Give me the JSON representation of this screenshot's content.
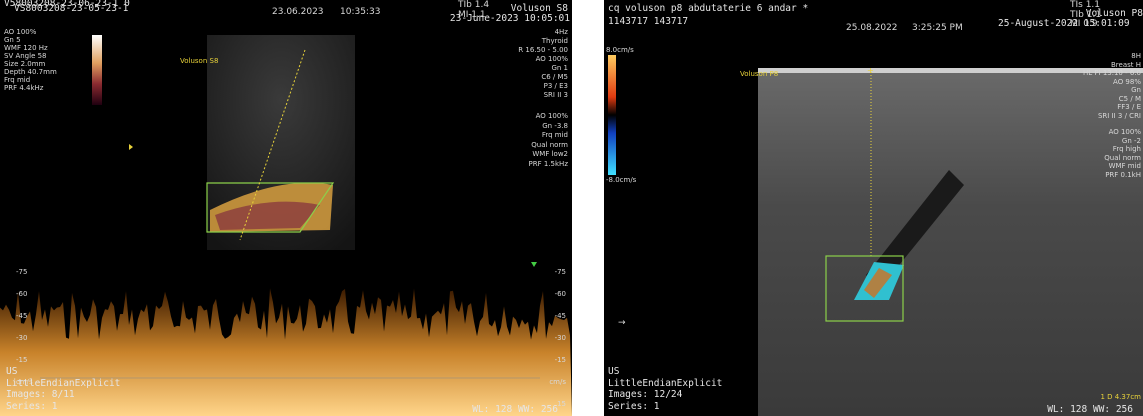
{
  "left": {
    "header": {
      "id_overlay": "V58003208-23-06-23-1 0",
      "id_main": "VS8003208-23-05-23-1",
      "date": "23.06.2023",
      "time": "10:35:33",
      "tib": "TIb 1.4",
      "mi": "MI 1.1",
      "brand": "Voluson S8",
      "datetime": "23-June-2023 10:05:01"
    },
    "probe": "Voluson S8",
    "params_left": [
      "AO 100%",
      "Gn 5",
      "WMF 120 Hz",
      "SV Angle 58",
      "Size 2.0mm",
      "Depth 40.7mm",
      "Frq mid",
      "PRF 4.4kHz"
    ],
    "params_right": [
      "4Hz",
      "Thyroid",
      "R 16.50 - 5.00",
      "AO 100%",
      "Gn 1",
      "C6 / M5",
      "P3 / E3",
      "SRI II 3"
    ],
    "params_right2": [
      "AO 100%",
      "Gn -3.8",
      "Frq mid",
      "Qual norm",
      "WMF low2",
      "PRF 1.5kHz"
    ],
    "doppler_ticks_left": [
      "-75",
      "-60",
      "-45",
      "-30",
      "-15",
      "cm/s"
    ],
    "doppler_ticks_right": [
      "-75",
      "-60",
      "-45",
      "-30",
      "-15",
      "cm/s",
      "15"
    ],
    "footer": [
      "US",
      "LittleEndianExplicit",
      "Images: 8/11",
      "Series: 1"
    ],
    "window": "WL: 128 WW: 256"
  },
  "right": {
    "header": {
      "title": "cq voluson p8 abdutaterie 6 andar *",
      "id": "1143717 143717",
      "date": "25.08.2022",
      "time": "3:25:25 PM",
      "datetime": "25-August-2022 15:01:09",
      "tis": "TIs 1.1",
      "tib": "TIb 1.1",
      "mi": "MI 0.9",
      "brand": "Voluson P8"
    },
    "probe": "Voluson P8",
    "scale_top": "8.0cm/s",
    "scale_bottom": "-8.0cm/s",
    "params_right": [
      "8H",
      "Breast H",
      "HL PI 13.10 - 6.0",
      "AO 98%",
      "Gn",
      "C5 / M",
      "FF3 / E",
      "SRI II 3 / CRI"
    ],
    "params_right2": [
      "AO 100%",
      "Gn -2",
      "Frq high",
      "Qual norm",
      "WMF mid",
      "PRF 0.1kH"
    ],
    "footer": [
      "US",
      "LittleEndianExplicit",
      "Images: 12/24",
      "Series: 1"
    ],
    "measurement": "1 D 4.37cm",
    "window": "WL: 128 WW: 256"
  }
}
